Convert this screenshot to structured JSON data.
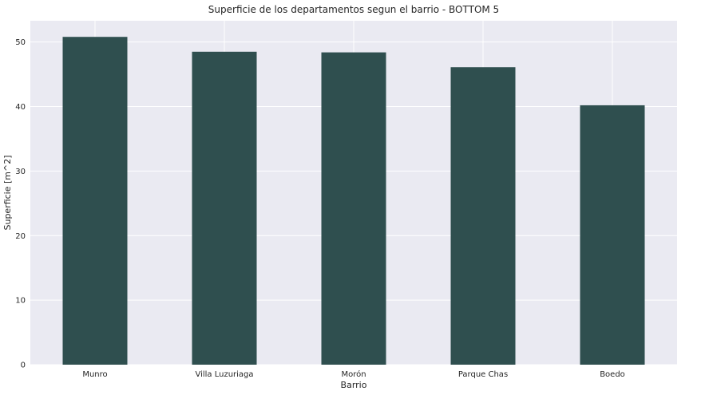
{
  "chart_data": {
    "type": "bar",
    "title": "Superficie de los departamentos segun el barrio - BOTTOM 5",
    "xlabel": "Barrio",
    "ylabel": "Superficie [m^2]",
    "categories": [
      "Munro",
      "Villa Luzuriaga",
      "Morón",
      "Parque Chas",
      "Boedo"
    ],
    "values": [
      50.8,
      48.5,
      48.4,
      46.1,
      40.2
    ],
    "ylim": [
      0,
      53.3
    ],
    "yticks": [
      0,
      10,
      20,
      30,
      40,
      50
    ],
    "grid": true,
    "colors": {
      "bar": "#2f4f4f",
      "background": "#eaeaf2",
      "grid": "#ffffff"
    }
  }
}
